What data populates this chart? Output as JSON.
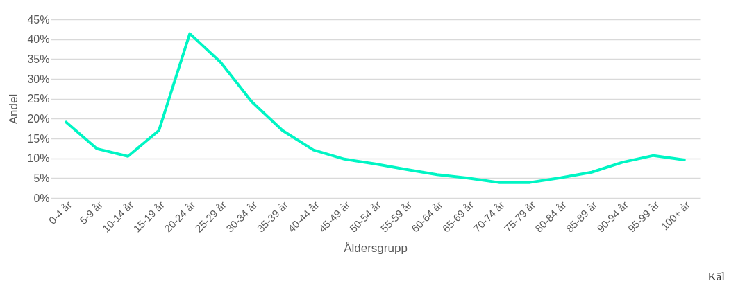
{
  "chart_data": {
    "type": "line",
    "xlabel": "Åldersgrupp",
    "ylabel": "Andel",
    "categories": [
      "0-4 år",
      "5-9 år",
      "10-14 år",
      "15-19 år",
      "20-24 år",
      "25-29 år",
      "30-34 år",
      "35-39 år",
      "40-44 år",
      "45-49 år",
      "50-54 år",
      "55-59 år",
      "60-64 år",
      "65-69 år",
      "70-74 år",
      "75-79 år",
      "80-84 år",
      "85-89 år",
      "90-94 år",
      "95-99 år",
      "100+ år"
    ],
    "series": [
      {
        "color": "#00f5c4",
        "values": [
          19.1,
          12.4,
          10.5,
          17.0,
          41.4,
          34.2,
          24.3,
          17.0,
          12.1,
          9.8,
          8.6,
          7.2,
          5.9,
          5.0,
          3.9,
          3.9,
          5.1,
          6.5,
          9.0,
          10.7,
          9.6
        ]
      }
    ],
    "ylim": [
      0,
      45
    ],
    "yticks": [
      {
        "value": 0,
        "label": "0%"
      },
      {
        "value": 5,
        "label": "5%"
      },
      {
        "value": 10,
        "label": "10%"
      },
      {
        "value": 15,
        "label": "15%"
      },
      {
        "value": 20,
        "label": "20%"
      },
      {
        "value": 25,
        "label": "25%"
      },
      {
        "value": 30,
        "label": "30%"
      },
      {
        "value": 35,
        "label": "35%"
      },
      {
        "value": 40,
        "label": "40%"
      },
      {
        "value": 45,
        "label": "45%"
      }
    ],
    "grid": "y",
    "marker": "none",
    "line_style": "solid",
    "annotations": [
      "Käl"
    ]
  }
}
